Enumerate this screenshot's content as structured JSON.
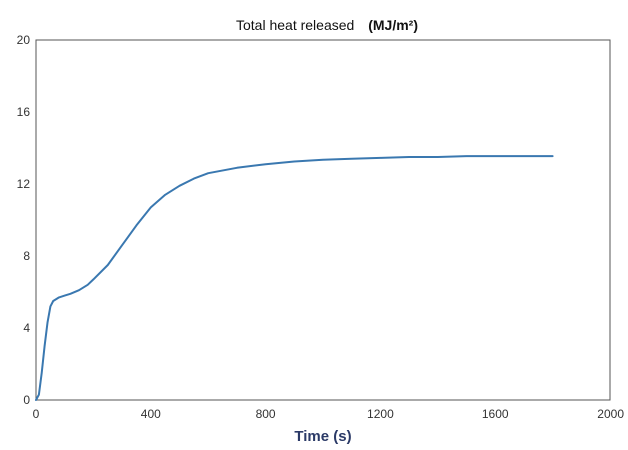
{
  "chart_data": {
    "type": "line",
    "title": "Total heat released",
    "title_unit": "(MJ/m²)",
    "xlabel": "Time (s)",
    "ylabel": "",
    "xlim": [
      0,
      2000
    ],
    "ylim": [
      0,
      20
    ],
    "x_ticks": [
      "0",
      "400",
      "800",
      "1200",
      "1600",
      "2000"
    ],
    "y_ticks": [
      "0",
      "4",
      "8",
      "12",
      "16",
      "20"
    ],
    "grid": false,
    "legend": "none",
    "line_color": "#3a78b0",
    "series": [
      {
        "x": [
          0,
          10,
          20,
          30,
          40,
          50,
          60,
          80,
          100,
          120,
          150,
          180,
          200,
          250,
          300,
          350,
          400,
          450,
          500,
          550,
          600,
          700,
          800,
          900,
          1000,
          1100,
          1200,
          1300,
          1400,
          1500,
          1600,
          1700,
          1800
        ],
        "y": [
          0,
          0.3,
          1.5,
          3.0,
          4.3,
          5.2,
          5.5,
          5.7,
          5.8,
          5.9,
          6.1,
          6.4,
          6.7,
          7.5,
          8.6,
          9.7,
          10.7,
          11.4,
          11.9,
          12.3,
          12.6,
          12.9,
          13.1,
          13.25,
          13.35,
          13.4,
          13.45,
          13.5,
          13.5,
          13.55,
          13.55,
          13.55,
          13.55
        ]
      }
    ]
  }
}
